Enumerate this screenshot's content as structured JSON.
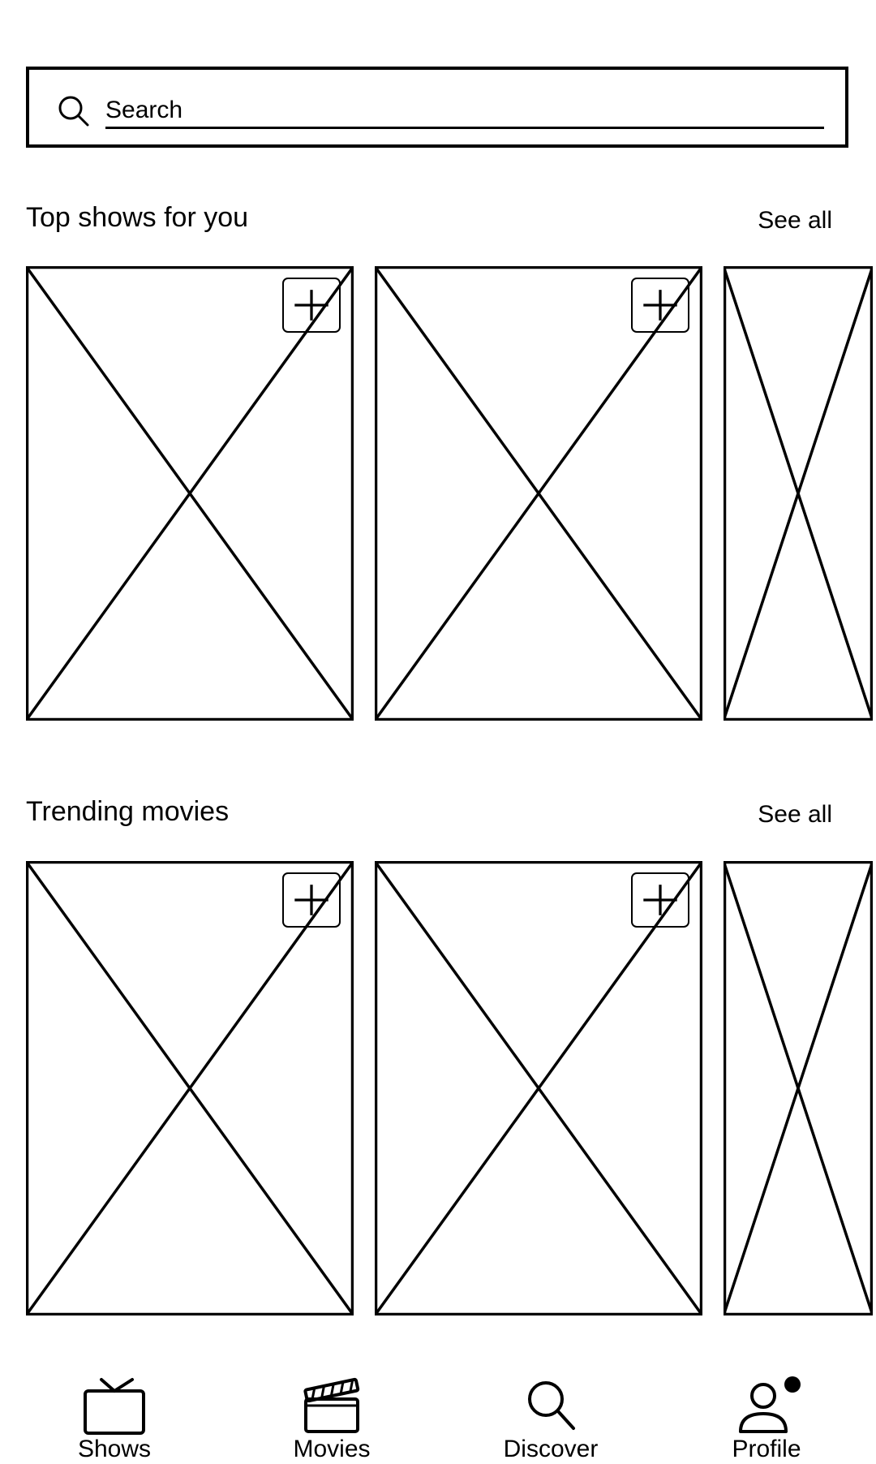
{
  "search": {
    "placeholder": "Search",
    "icon": "search-icon"
  },
  "sections": [
    {
      "title": "Top shows for you",
      "see_all_label": "See all",
      "cards": [
        {
          "type": "image-placeholder",
          "add_button_icon": "plus-icon"
        },
        {
          "type": "image-placeholder",
          "add_button_icon": "plus-icon"
        },
        {
          "type": "image-placeholder"
        }
      ]
    },
    {
      "title": "Trending movies",
      "see_all_label": "See all",
      "cards": [
        {
          "type": "image-placeholder",
          "add_button_icon": "plus-icon"
        },
        {
          "type": "image-placeholder",
          "add_button_icon": "plus-icon"
        },
        {
          "type": "image-placeholder"
        }
      ]
    }
  ],
  "bottom_nav": {
    "items": [
      {
        "label": "Shows",
        "icon": "tv-icon"
      },
      {
        "label": "Movies",
        "icon": "clapperboard-icon"
      },
      {
        "label": "Discover",
        "icon": "search-icon"
      },
      {
        "label": "Profile",
        "icon": "user-icon",
        "badge": "dot"
      }
    ]
  },
  "colors": {
    "stroke": "#000000",
    "background": "#ffffff"
  }
}
